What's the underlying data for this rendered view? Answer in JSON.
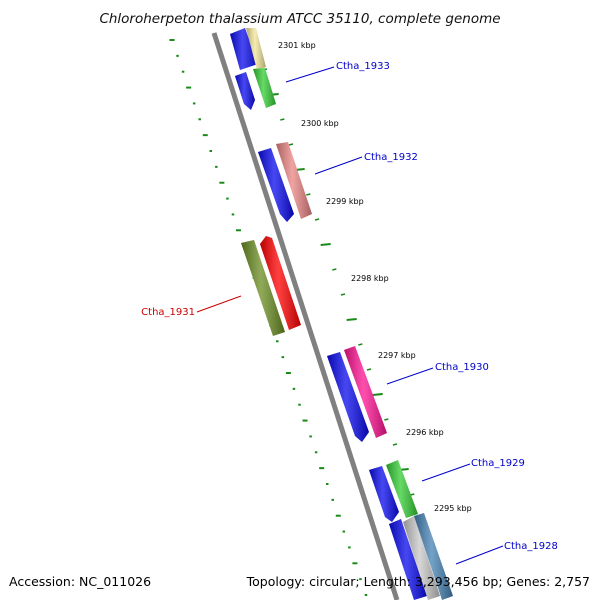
{
  "title": "Chloroherpeton thalassium ATCC 35110, complete genome",
  "footer": {
    "accession": "Accession: NC_011026",
    "stats": "Topology: circular; Length: 3,293,456 bp; Genes: 2,757"
  },
  "scale_labels": [
    "2301 kbp",
    "2300 kbp",
    "2299 kbp",
    "2298 kbp",
    "2297 kbp",
    "2296 kbp",
    "2295 kbp"
  ],
  "gene_labels": [
    {
      "text": "Ctha_1933",
      "color": "#0000cc"
    },
    {
      "text": "Ctha_1932",
      "color": "#0000cc"
    },
    {
      "text": "Ctha_1931",
      "color": "#cc0000"
    },
    {
      "text": "Ctha_1930",
      "color": "#0000cc"
    },
    {
      "text": "Ctha_1929",
      "color": "#0000cc"
    },
    {
      "text": "Ctha_1928",
      "color": "#0000cc"
    }
  ],
  "colors": {
    "backbone": "#808080",
    "dotted_track": "#1a8a1a",
    "cds_forward": "#0a0aee",
    "cds_reverse": "#0a0aee",
    "yellow_feature": "#f2e59a",
    "green_feature": "#33cc33",
    "pink_feature": "#ea8484",
    "olive_feature": "#6b8e23",
    "red_feature": "#ff0000",
    "magenta_feature": "#ff1493",
    "steel_feature": "#4682b4"
  }
}
